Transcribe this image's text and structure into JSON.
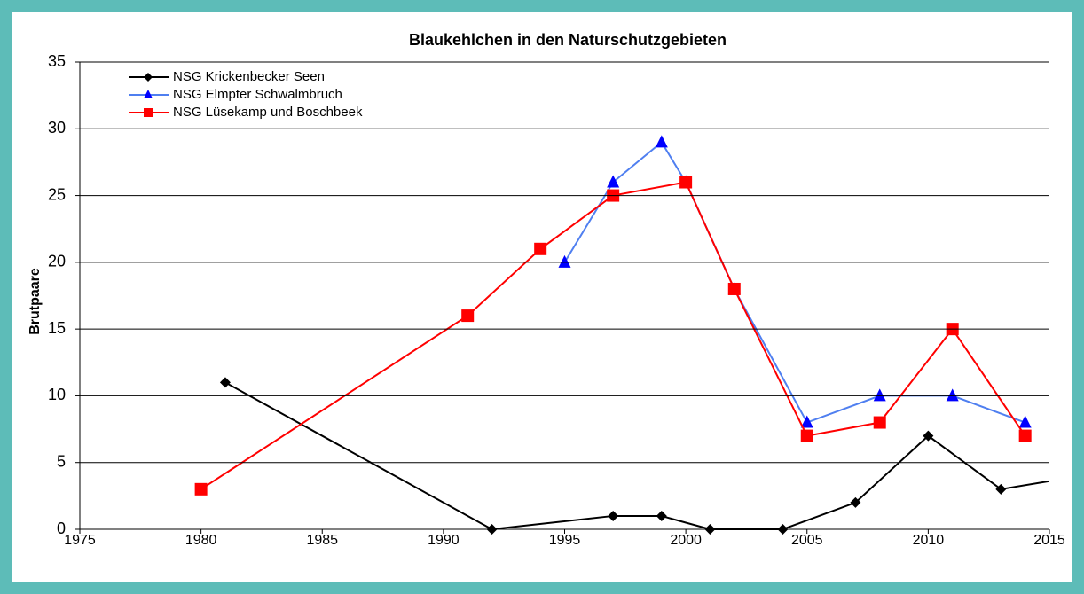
{
  "chart_data": {
    "type": "line",
    "title": "Blaukehlchen in den Naturschutzgebieten",
    "ylabel": "Brutpaare",
    "xlim": [
      1975,
      2015
    ],
    "xticks": [
      1975,
      1980,
      1985,
      1990,
      1995,
      2000,
      2005,
      2010,
      2015
    ],
    "ylim": [
      0,
      35
    ],
    "yticks": [
      0,
      5,
      10,
      15,
      20,
      25,
      30,
      35
    ],
    "grid": true,
    "legend": "top-left",
    "series": [
      {
        "name": "NSG Krickenbecker Seen",
        "color": "#000000",
        "marker": "diamond",
        "x": [
          1981,
          1992,
          1997,
          1999,
          2001,
          2004,
          2007,
          2010,
          2013,
          2018
        ],
        "values": [
          11,
          0,
          1,
          1,
          0,
          0,
          2,
          7,
          3,
          4.5
        ]
      },
      {
        "name": "NSG Elmpter Schwalmbruch",
        "color": "#4f7ff0",
        "marker_color": "#0000ff",
        "marker": "triangle",
        "x": [
          1995,
          1997,
          1999,
          2000,
          2002,
          2005,
          2008,
          2011,
          2014
        ],
        "values": [
          20,
          26,
          29,
          26,
          18,
          8,
          10,
          10,
          8
        ]
      },
      {
        "name": "NSG Lüsekamp und Boschbeek",
        "color": "#ff0000",
        "marker": "square",
        "x": [
          1980,
          1991,
          1994,
          1997,
          2000,
          2002,
          2005,
          2008,
          2011,
          2014
        ],
        "values": [
          3,
          16,
          21,
          25,
          26,
          18,
          7,
          8,
          15,
          7
        ]
      }
    ]
  }
}
